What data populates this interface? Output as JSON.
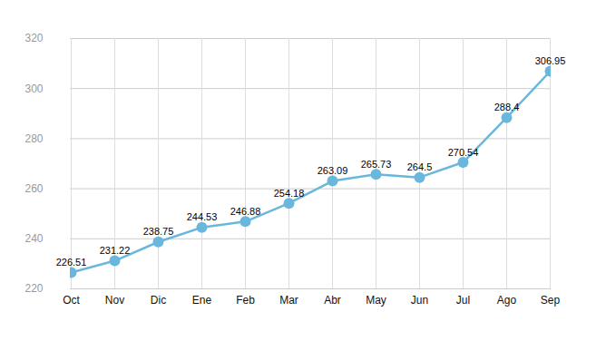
{
  "chart_data": {
    "type": "line",
    "categories": [
      "Oct",
      "Nov",
      "Dic",
      "Ene",
      "Feb",
      "Mar",
      "Abr",
      "May",
      "Jun",
      "Jul",
      "Ago",
      "Sep"
    ],
    "values": [
      226.51,
      231.22,
      238.75,
      244.53,
      246.88,
      254.18,
      263.09,
      265.73,
      264.5,
      270.54,
      288.4,
      306.95
    ],
    "color": "#6ab7de",
    "marker": "circle",
    "ylim": [
      220,
      320
    ],
    "yticks": [
      220,
      240,
      260,
      280,
      300,
      320
    ],
    "grid": true,
    "data_labels": true
  }
}
